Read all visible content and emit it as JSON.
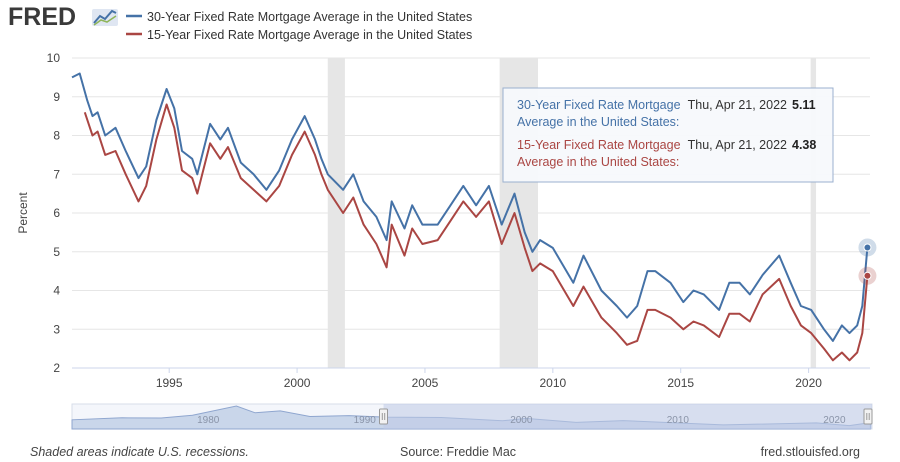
{
  "header": {
    "logo_text": "FRED",
    "logo_icon": "trend-line-icon"
  },
  "colors": {
    "series_30yr": "#4572a7",
    "series_15yr": "#aa4643",
    "recession_shade": "#e6e6e6",
    "grid": "#e6e6e6",
    "navigator_fill": "#c9d6ea",
    "navigator_line": "#8fa6cf",
    "navigator_selected": "#bfcbe6",
    "logo": "#3a3a3a"
  },
  "chart_data": {
    "type": "line",
    "xlabel": "",
    "ylabel": "Percent",
    "xlim": [
      1991.2,
      2022.4
    ],
    "ylim": [
      2,
      10
    ],
    "y_ticks": [
      2,
      3,
      4,
      5,
      6,
      7,
      8,
      9,
      10
    ],
    "x_ticks": [
      1995,
      2000,
      2005,
      2010,
      2015,
      2020
    ],
    "grid": "horizontal",
    "legend_placement": "top-left",
    "recessions": [
      [
        2001.2,
        2001.87
      ],
      [
        2007.92,
        2009.42
      ],
      [
        2020.08,
        2020.29
      ]
    ],
    "series": [
      {
        "name": "30-Year Fixed Rate Mortgage Average in the United States",
        "color": "#4572a7",
        "points": [
          [
            1991.2,
            9.5
          ],
          [
            1991.5,
            9.6
          ],
          [
            1991.8,
            8.9
          ],
          [
            1992.0,
            8.5
          ],
          [
            1992.2,
            8.6
          ],
          [
            1992.5,
            8.0
          ],
          [
            1992.9,
            8.2
          ],
          [
            1993.3,
            7.6
          ],
          [
            1993.8,
            6.9
          ],
          [
            1994.1,
            7.2
          ],
          [
            1994.5,
            8.4
          ],
          [
            1994.9,
            9.2
          ],
          [
            1995.2,
            8.7
          ],
          [
            1995.5,
            7.6
          ],
          [
            1995.9,
            7.4
          ],
          [
            1996.1,
            7.0
          ],
          [
            1996.6,
            8.3
          ],
          [
            1997.0,
            7.9
          ],
          [
            1997.3,
            8.2
          ],
          [
            1997.8,
            7.3
          ],
          [
            1998.3,
            7.0
          ],
          [
            1998.8,
            6.6
          ],
          [
            1999.3,
            7.1
          ],
          [
            1999.8,
            7.9
          ],
          [
            2000.3,
            8.5
          ],
          [
            2000.7,
            7.9
          ],
          [
            2000.95,
            7.4
          ],
          [
            2001.2,
            7.0
          ],
          [
            2001.8,
            6.6
          ],
          [
            2002.2,
            7.0
          ],
          [
            2002.6,
            6.3
          ],
          [
            2003.1,
            5.9
          ],
          [
            2003.5,
            5.3
          ],
          [
            2003.7,
            6.3
          ],
          [
            2004.2,
            5.6
          ],
          [
            2004.5,
            6.2
          ],
          [
            2004.9,
            5.7
          ],
          [
            2005.5,
            5.7
          ],
          [
            2006.0,
            6.2
          ],
          [
            2006.5,
            6.7
          ],
          [
            2007.0,
            6.2
          ],
          [
            2007.5,
            6.7
          ],
          [
            2008.0,
            5.7
          ],
          [
            2008.5,
            6.5
          ],
          [
            2008.9,
            5.5
          ],
          [
            2009.2,
            5.0
          ],
          [
            2009.5,
            5.3
          ],
          [
            2010.0,
            5.1
          ],
          [
            2010.8,
            4.2
          ],
          [
            2011.2,
            4.9
          ],
          [
            2011.9,
            4.0
          ],
          [
            2012.5,
            3.6
          ],
          [
            2012.9,
            3.3
          ],
          [
            2013.3,
            3.6
          ],
          [
            2013.7,
            4.5
          ],
          [
            2014.0,
            4.5
          ],
          [
            2014.6,
            4.2
          ],
          [
            2015.1,
            3.7
          ],
          [
            2015.5,
            4.0
          ],
          [
            2015.9,
            3.9
          ],
          [
            2016.5,
            3.5
          ],
          [
            2016.9,
            4.2
          ],
          [
            2017.3,
            4.2
          ],
          [
            2017.7,
            3.9
          ],
          [
            2018.2,
            4.4
          ],
          [
            2018.85,
            4.9
          ],
          [
            2019.3,
            4.2
          ],
          [
            2019.7,
            3.6
          ],
          [
            2020.1,
            3.5
          ],
          [
            2020.6,
            3.0
          ],
          [
            2020.95,
            2.7
          ],
          [
            2021.3,
            3.1
          ],
          [
            2021.6,
            2.9
          ],
          [
            2021.9,
            3.1
          ],
          [
            2022.1,
            3.6
          ],
          [
            2022.3,
            5.11
          ]
        ]
      },
      {
        "name": "15-Year Fixed Rate Mortgage Average in the United States",
        "color": "#aa4643",
        "points": [
          [
            1991.7,
            8.6
          ],
          [
            1992.0,
            8.0
          ],
          [
            1992.2,
            8.1
          ],
          [
            1992.5,
            7.5
          ],
          [
            1992.9,
            7.6
          ],
          [
            1993.3,
            7.0
          ],
          [
            1993.8,
            6.3
          ],
          [
            1994.1,
            6.7
          ],
          [
            1994.5,
            7.9
          ],
          [
            1994.9,
            8.8
          ],
          [
            1995.2,
            8.2
          ],
          [
            1995.5,
            7.1
          ],
          [
            1995.9,
            6.9
          ],
          [
            1996.1,
            6.5
          ],
          [
            1996.6,
            7.8
          ],
          [
            1997.0,
            7.4
          ],
          [
            1997.3,
            7.7
          ],
          [
            1997.8,
            6.9
          ],
          [
            1998.3,
            6.6
          ],
          [
            1998.8,
            6.3
          ],
          [
            1999.3,
            6.7
          ],
          [
            1999.8,
            7.5
          ],
          [
            2000.3,
            8.1
          ],
          [
            2000.7,
            7.5
          ],
          [
            2000.95,
            7.0
          ],
          [
            2001.2,
            6.6
          ],
          [
            2001.8,
            6.0
          ],
          [
            2002.2,
            6.4
          ],
          [
            2002.6,
            5.7
          ],
          [
            2003.1,
            5.2
          ],
          [
            2003.5,
            4.6
          ],
          [
            2003.7,
            5.7
          ],
          [
            2004.2,
            4.9
          ],
          [
            2004.5,
            5.6
          ],
          [
            2004.9,
            5.2
          ],
          [
            2005.5,
            5.3
          ],
          [
            2006.0,
            5.8
          ],
          [
            2006.5,
            6.3
          ],
          [
            2007.0,
            5.9
          ],
          [
            2007.5,
            6.3
          ],
          [
            2008.0,
            5.2
          ],
          [
            2008.5,
            6.0
          ],
          [
            2008.9,
            5.1
          ],
          [
            2009.2,
            4.5
          ],
          [
            2009.5,
            4.7
          ],
          [
            2010.0,
            4.5
          ],
          [
            2010.8,
            3.6
          ],
          [
            2011.2,
            4.1
          ],
          [
            2011.9,
            3.3
          ],
          [
            2012.5,
            2.9
          ],
          [
            2012.9,
            2.6
          ],
          [
            2013.3,
            2.7
          ],
          [
            2013.7,
            3.5
          ],
          [
            2014.0,
            3.5
          ],
          [
            2014.6,
            3.3
          ],
          [
            2015.1,
            3.0
          ],
          [
            2015.5,
            3.2
          ],
          [
            2015.9,
            3.1
          ],
          [
            2016.5,
            2.8
          ],
          [
            2016.9,
            3.4
          ],
          [
            2017.3,
            3.4
          ],
          [
            2017.7,
            3.2
          ],
          [
            2018.2,
            3.9
          ],
          [
            2018.85,
            4.3
          ],
          [
            2019.3,
            3.6
          ],
          [
            2019.7,
            3.1
          ],
          [
            2020.1,
            2.9
          ],
          [
            2020.6,
            2.5
          ],
          [
            2020.95,
            2.2
          ],
          [
            2021.3,
            2.4
          ],
          [
            2021.6,
            2.2
          ],
          [
            2021.9,
            2.4
          ],
          [
            2022.1,
            2.9
          ],
          [
            2022.3,
            4.38
          ]
        ]
      }
    ],
    "tooltip": {
      "rows": [
        {
          "series_label_line1": "30-Year Fixed Rate Mortgage",
          "series_label_line2": "Average in the United States:",
          "date": "Thu, Apr 21, 2022",
          "value": "5.11"
        },
        {
          "series_label_line1": "15-Year Fixed Rate Mortgage",
          "series_label_line2": "Average in the United States:",
          "date": "Thu, Apr 21, 2022",
          "value": "4.38"
        }
      ]
    },
    "navigator": {
      "xlim": [
        1971.3,
        2022.4
      ],
      "labels": [
        "1980",
        "1990",
        "2000",
        "2010",
        "2020"
      ],
      "selected_range": [
        1991.2,
        2022.4
      ],
      "profile": [
        [
          1971.3,
          7.4
        ],
        [
          1974.5,
          9.0
        ],
        [
          1977.0,
          8.8
        ],
        [
          1979.0,
          11.0
        ],
        [
          1981.8,
          18.4
        ],
        [
          1983.0,
          13.0
        ],
        [
          1984.6,
          14.5
        ],
        [
          1986.5,
          10.0
        ],
        [
          1989.0,
          10.7
        ],
        [
          1991.2,
          9.5
        ],
        [
          1994.9,
          9.2
        ],
        [
          1998.8,
          6.6
        ],
        [
          2000.3,
          8.5
        ],
        [
          2003.5,
          5.3
        ],
        [
          2006.5,
          6.7
        ],
        [
          2012.9,
          3.3
        ],
        [
          2018.85,
          4.9
        ],
        [
          2020.95,
          2.7
        ],
        [
          2022.3,
          5.11
        ]
      ]
    }
  },
  "footer": {
    "recession_note": "Shaded areas indicate U.S. recessions.",
    "source": "Source: Freddie Mac",
    "site": "fred.stlouisfed.org"
  }
}
